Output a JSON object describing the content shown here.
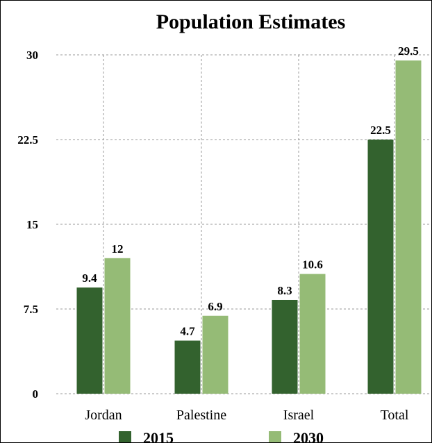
{
  "chart_data": {
    "type": "bar",
    "title": "Population Estimates",
    "xlabel": "",
    "ylabel": "",
    "categories": [
      "Jordan",
      "Palestine",
      "Israel",
      "Total"
    ],
    "series": [
      {
        "name": "2015",
        "values": [
          9.4,
          4.7,
          8.3,
          22.5
        ],
        "color": "#33622e"
      },
      {
        "name": "2030",
        "values": [
          12,
          6.9,
          10.6,
          29.5
        ],
        "color": "#95bb76"
      }
    ],
    "value_labels": [
      [
        "9.4",
        "4.7",
        "8.3",
        "22.5"
      ],
      [
        "12",
        "6.9",
        "10.6",
        "29.5"
      ]
    ],
    "ylim": [
      0,
      30
    ],
    "yticks": [
      0,
      7.5,
      15,
      22.5,
      30
    ],
    "ytick_labels": [
      "0",
      "7.5",
      "15",
      "22.5",
      "30"
    ],
    "grid": true,
    "legend_position": "bottom"
  }
}
